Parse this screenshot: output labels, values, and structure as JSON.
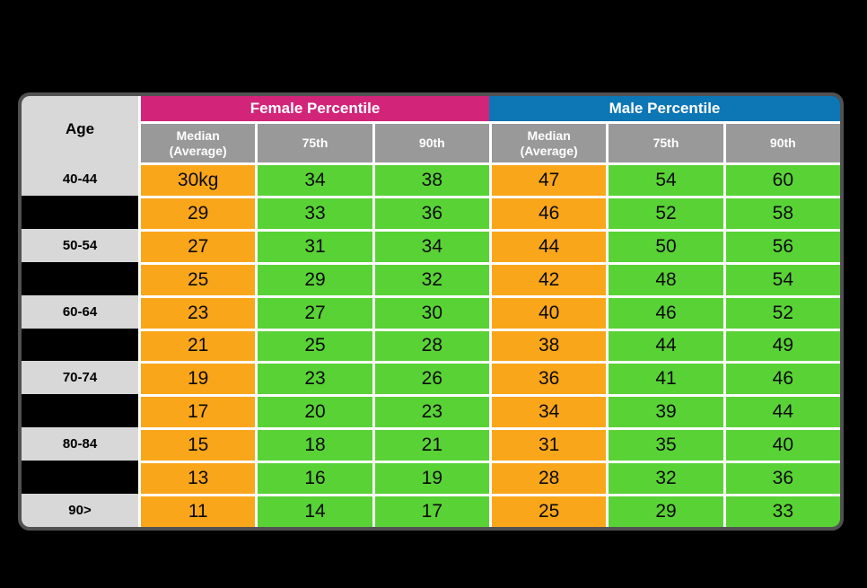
{
  "colors": {
    "page_bg": "#000000",
    "table_border": "#515151",
    "grid_line": "#FFFFFF",
    "female_header": "#D2257A",
    "male_header": "#0D76B5",
    "sub_header_bg": "#999999",
    "age_bg": "#D8D8D8",
    "median_bg": "#FAA61B",
    "percentile_bg": "#59D236",
    "header_text": "#FFFFFF",
    "data_text": "#0A0A0A"
  },
  "chart_data": {
    "type": "table",
    "corner_header": "Age",
    "column_groups": [
      {
        "label": "Female Percentile"
      },
      {
        "label": "Male Percentile"
      }
    ],
    "columns": [
      "Median\n(Average)",
      "75th",
      "90th",
      "Median\n(Average)",
      "75th",
      "90th"
    ],
    "rows": [
      {
        "age": "40-44",
        "values": [
          "30kg",
          "34",
          "38",
          "47",
          "54",
          "60"
        ]
      },
      {
        "age": "",
        "values": [
          "29",
          "33",
          "36",
          "46",
          "52",
          "58"
        ]
      },
      {
        "age": "50-54",
        "values": [
          "27",
          "31",
          "34",
          "44",
          "50",
          "56"
        ]
      },
      {
        "age": "",
        "values": [
          "25",
          "29",
          "32",
          "42",
          "48",
          "54"
        ]
      },
      {
        "age": "60-64",
        "values": [
          "23",
          "27",
          "30",
          "40",
          "46",
          "52"
        ]
      },
      {
        "age": "",
        "values": [
          "21",
          "25",
          "28",
          "38",
          "44",
          "49"
        ]
      },
      {
        "age": "70-74",
        "values": [
          "19",
          "23",
          "26",
          "36",
          "41",
          "46"
        ]
      },
      {
        "age": "",
        "values": [
          "17",
          "20",
          "23",
          "34",
          "39",
          "44"
        ]
      },
      {
        "age": "80-84",
        "values": [
          "15",
          "18",
          "21",
          "31",
          "35",
          "40"
        ]
      },
      {
        "age": "",
        "values": [
          "13",
          "16",
          "19",
          "28",
          "32",
          "36"
        ]
      },
      {
        "age": "90>",
        "values": [
          "11",
          "14",
          "17",
          "25",
          "29",
          "33"
        ]
      }
    ]
  }
}
